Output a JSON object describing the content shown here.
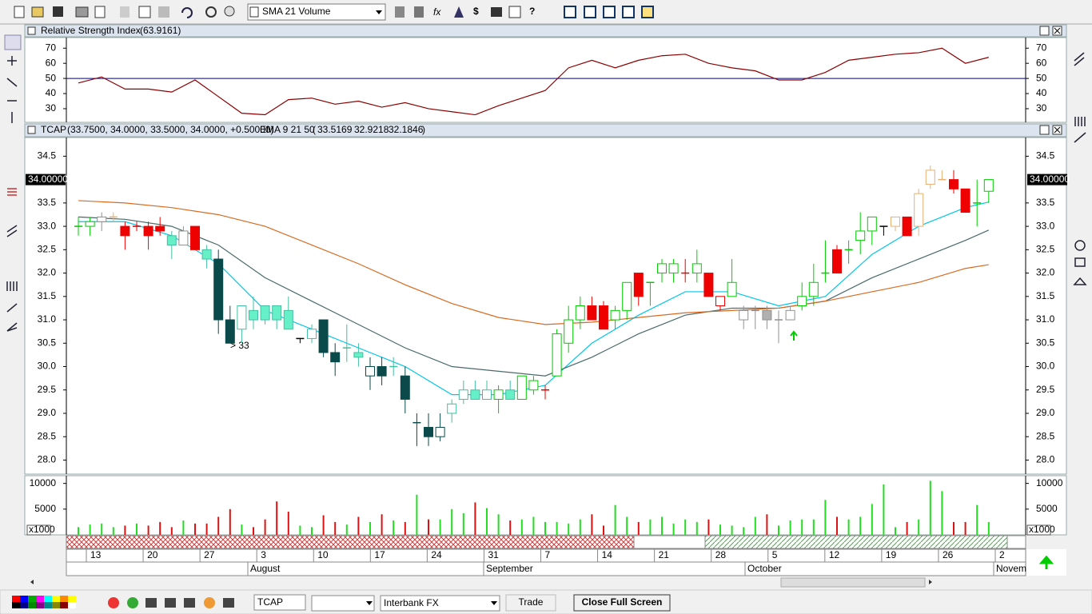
{
  "toolbar": {
    "indicator_select": "SMA 21 Volume"
  },
  "rsi_panel": {
    "title": "Relative Strength Index",
    "readout": "(63.9161)",
    "ylim": [
      21,
      77
    ],
    "yticks": [
      70,
      60,
      50,
      40,
      30
    ],
    "reference": 50,
    "color": "#8b0000",
    "reference_color": "#000080",
    "x": [
      0,
      2,
      4,
      6,
      8,
      10,
      12,
      14,
      16,
      18,
      20,
      22,
      24,
      26,
      28,
      30,
      32,
      34,
      36,
      38,
      40,
      42,
      44,
      46,
      48,
      50,
      52,
      54,
      56,
      58,
      60,
      62,
      64,
      66,
      68,
      70,
      72,
      74,
      76,
      78
    ],
    "values": [
      47,
      51,
      43,
      43,
      41,
      49,
      38,
      27,
      26,
      36,
      37,
      33,
      35,
      31,
      34,
      30,
      28,
      26,
      32,
      37,
      42,
      57,
      62,
      57,
      62,
      65,
      66,
      60,
      57,
      55,
      49,
      49,
      54,
      62,
      64,
      66,
      67,
      70,
      60,
      64
    ]
  },
  "chart_data": {
    "type": "candlestick",
    "symbol": "TCAP",
    "ohlc_readout": "(33.7500, 34.0000, 33.5000, 34.0000, +0.50000)",
    "ema_label": "EMA 9 21 50",
    "ema_paren_open": "(",
    "ema_paren_close": ")",
    "ylim": [
      27.7,
      34.9
    ],
    "yticks": [
      34.5,
      33.5,
      {
        "value": 33,
        "label": "33.0"
      },
      32.5,
      {
        "value": 32,
        "label": "32.0"
      },
      31.5,
      {
        "value": 31,
        "label": "31.0"
      },
      30.5,
      {
        "value": 30,
        "label": "30.0"
      },
      29.5,
      {
        "value": 29,
        "label": "29.0"
      },
      28.5,
      {
        "value": 28,
        "label": "28.0"
      }
    ],
    "last_price": {
      "value": 34,
      "label": "34.00000"
    },
    "open": [
      33.0,
      33.0,
      33.1,
      33.2,
      33.0,
      33.0,
      33.0,
      33.0,
      32.8,
      32.6,
      33.0,
      32.5,
      32.3,
      31.0,
      30.8,
      31.2,
      31.3,
      31.3,
      31.2,
      30.6,
      30.6,
      31.0,
      30.3,
      30.4,
      30.3,
      29.8,
      30.0,
      30.0,
      29.8,
      28.8,
      28.7,
      28.5,
      29.0,
      29.3,
      29.5,
      29.3,
      29.3,
      29.5,
      29.3,
      29.5,
      29.5,
      29.8,
      30.5,
      31.0,
      31.3,
      31.3,
      31.0,
      31.2,
      32.0,
      31.8,
      32.0,
      32.0,
      32.0,
      32.0,
      32.0,
      31.3,
      31.5,
      31.0,
      31.2,
      31.2,
      31.0,
      31.0,
      31.3,
      31.5,
      32.0,
      32.5,
      32.5,
      32.7,
      32.9,
      33.0,
      33.0,
      33.2,
      33.0,
      33.9,
      34.0,
      34.0,
      33.8,
      33.5,
      33.75
    ],
    "high": [
      33.2,
      33.2,
      33.3,
      33.3,
      33.1,
      33.1,
      33.1,
      33.2,
      32.9,
      33.0,
      33.0,
      32.6,
      32.5,
      31.3,
      31.3,
      31.5,
      31.3,
      31.3,
      31.5,
      30.6,
      30.9,
      31.0,
      30.5,
      30.9,
      30.5,
      30.2,
      30.2,
      30.2,
      30.0,
      29.0,
      29.0,
      29.0,
      29.3,
      29.7,
      29.7,
      29.7,
      29.6,
      29.7,
      29.8,
      29.8,
      29.6,
      30.8,
      31.3,
      31.5,
      31.5,
      31.4,
      31.3,
      31.8,
      32.0,
      31.8,
      32.3,
      32.3,
      32.3,
      32.5,
      32.0,
      31.5,
      32.3,
      31.3,
      31.3,
      31.3,
      31.2,
      31.3,
      31.8,
      32.2,
      32.7,
      32.6,
      32.7,
      33.3,
      33.2,
      33.0,
      33.2,
      33.2,
      33.8,
      34.3,
      34.2,
      34.2,
      33.8,
      34.0,
      34.0
    ],
    "low": [
      32.8,
      32.8,
      32.9,
      33.1,
      32.5,
      32.9,
      32.5,
      32.8,
      32.3,
      32.6,
      32.5,
      32.1,
      30.7,
      30.5,
      30.5,
      30.8,
      30.9,
      30.8,
      30.8,
      30.5,
      30.5,
      30.2,
      29.8,
      30.1,
      30.0,
      29.5,
      29.6,
      29.8,
      29.0,
      28.3,
      28.3,
      28.4,
      28.8,
      29.2,
      29.3,
      29.3,
      29.0,
      29.3,
      29.3,
      29.4,
      29.3,
      29.8,
      30.3,
      30.8,
      31.0,
      30.8,
      30.8,
      31.0,
      31.3,
      31.3,
      31.8,
      31.8,
      31.8,
      31.8,
      31.5,
      31.2,
      31.5,
      30.8,
      30.8,
      30.8,
      30.5,
      31.0,
      31.2,
      31.3,
      31.8,
      32.0,
      32.2,
      32.4,
      32.6,
      32.8,
      32.9,
      32.8,
      32.8,
      33.8,
      34.0,
      33.7,
      33.3,
      33.0,
      33.5
    ],
    "close": [
      33.0,
      33.1,
      33.2,
      33.2,
      32.8,
      33.0,
      32.8,
      32.9,
      32.6,
      32.9,
      32.5,
      32.3,
      31.0,
      30.5,
      31.3,
      31.0,
      31.0,
      31.0,
      30.8,
      30.6,
      30.8,
      30.3,
      30.1,
      30.4,
      30.2,
      30.0,
      29.8,
      30.0,
      29.3,
      28.8,
      28.5,
      28.7,
      29.2,
      29.5,
      29.3,
      29.5,
      29.5,
      29.3,
      29.8,
      29.7,
      29.5,
      30.7,
      31.0,
      31.3,
      31.0,
      30.8,
      31.2,
      31.8,
      31.5,
      31.8,
      32.2,
      32.2,
      32.0,
      32.2,
      31.5,
      31.5,
      31.8,
      31.2,
      31.2,
      31.0,
      31.0,
      31.2,
      31.5,
      31.8,
      32.0,
      32.0,
      32.5,
      32.9,
      33.2,
      33.0,
      33.2,
      32.8,
      33.7,
      34.2,
      34.0,
      33.8,
      33.3,
      33.5,
      34.0
    ],
    "colors": [
      "#00cc00",
      "#00cc00",
      "#b0b0b0",
      "#e8b070",
      "#ee0000",
      "#ee0000",
      "#ee0000",
      "#ee0000",
      "#66f0c8",
      "#b0b0b0",
      "#ee0000",
      "#66f0c8",
      "#0a4a4a",
      "#0a4a4a",
      "#66f0c8",
      "#66f0c8",
      "#66f0c8",
      "#66f0c8",
      "#66f0c8",
      "#000000",
      "#66f0c8",
      "#0a4a4a",
      "#0a4a4a",
      "#66f0c8",
      "#66f0c8",
      "#0a4a4a",
      "#0a4a4a",
      "#66f0c8",
      "#0a4a4a",
      "#0a4a4a",
      "#0a4a4a",
      "#0a4a4a",
      "#66f0c8",
      "#66f0c8",
      "#66f0c8",
      "#66f0c8",
      "#00cc00",
      "#66f0c8",
      "#00cc00",
      "#00cc00",
      "#ee0000",
      "#00cc00",
      "#00cc00",
      "#00cc00",
      "#ee0000",
      "#ee0000",
      "#00cc00",
      "#00cc00",
      "#ee0000",
      "#00cc00",
      "#00cc00",
      "#00cc00",
      "#ee0000",
      "#00cc00",
      "#ee0000",
      "#ee0000",
      "#00cc00",
      "#b0b0b0",
      "#b0b0b0",
      "#b0b0b0",
      "#b0b0b0",
      "#b0b0b0",
      "#00cc00",
      "#00cc00",
      "#00cc00",
      "#ee0000",
      "#00cc00",
      "#00cc00",
      "#00cc00",
      "#000000",
      "#e8b070",
      "#ee0000",
      "#e8b070",
      "#e8b070",
      "#e8b070",
      "#ee0000",
      "#ee0000",
      "#00cc00",
      "#00cc00"
    ],
    "series": [
      {
        "name": "33.5169",
        "color": "#00c8e8",
        "x": [
          0,
          4,
          8,
          12,
          16,
          20,
          24,
          28,
          32,
          36,
          40,
          44,
          48,
          52,
          56,
          60,
          64,
          68,
          72,
          76,
          78
        ],
        "values": [
          33.1,
          33.1,
          32.8,
          32.2,
          31.2,
          30.8,
          30.4,
          30.0,
          29.4,
          29.4,
          29.6,
          30.5,
          31.1,
          31.6,
          31.6,
          31.3,
          31.5,
          32.4,
          33.0,
          33.4,
          33.52
        ]
      },
      {
        "name": "32.9218",
        "color": "#4a6a6a",
        "x": [
          0,
          4,
          8,
          12,
          16,
          20,
          24,
          28,
          32,
          36,
          40,
          44,
          48,
          52,
          56,
          60,
          64,
          68,
          72,
          76,
          78
        ],
        "values": [
          33.2,
          33.15,
          33.0,
          32.6,
          31.9,
          31.4,
          30.9,
          30.4,
          30.0,
          29.9,
          29.8,
          30.2,
          30.7,
          31.1,
          31.25,
          31.25,
          31.4,
          31.9,
          32.3,
          32.7,
          32.92
        ]
      },
      {
        "name": "32.1846",
        "color": "#d86a20",
        "x": [
          0,
          4,
          8,
          12,
          16,
          20,
          24,
          28,
          32,
          36,
          40,
          44,
          48,
          52,
          56,
          60,
          64,
          68,
          72,
          76,
          78
        ],
        "values": [
          33.55,
          33.5,
          33.4,
          33.25,
          33.0,
          32.6,
          32.2,
          31.75,
          31.35,
          31.05,
          30.9,
          30.95,
          31.05,
          31.15,
          31.2,
          31.25,
          31.4,
          31.6,
          31.8,
          32.1,
          32.18
        ]
      }
    ],
    "annotation": "> 33"
  },
  "volume_panel": {
    "ylim": [
      0,
      11500
    ],
    "yticks": [
      10000,
      5000
    ],
    "unit": "x1000",
    "up_color": "#22dd22",
    "down_color": "#dd1111",
    "values": [
      1500,
      2000,
      2200,
      1500,
      1800,
      2200,
      1800,
      2500,
      1500,
      2800,
      2200,
      2200,
      3500,
      5000,
      2000,
      1500,
      3000,
      6500,
      4500,
      1800,
      1500,
      3800,
      2500,
      2000,
      3500,
      2500,
      4000,
      2800,
      2500,
      7800,
      3000,
      3000,
      5000,
      4200,
      6300,
      5200,
      4000,
      2800,
      3000,
      3500,
      2500,
      2500,
      2200,
      3000,
      4000,
      1800,
      5800,
      3500,
      2500,
      3000,
      3500,
      2200,
      3000,
      2500,
      3000,
      2000,
      1800,
      1500,
      3500,
      4000,
      1800,
      2800,
      3000,
      3000,
      6800,
      3500,
      3000,
      3500,
      6000,
      9800,
      1500,
      2500,
      3000,
      10500,
      8500,
      2500,
      2500,
      5800,
      2500
    ]
  },
  "date_axis": {
    "days": [
      "13",
      "20",
      "27",
      "3",
      "10",
      "17",
      "24",
      "31",
      "7",
      "14",
      "21",
      "28",
      "5",
      "12",
      "19",
      "26",
      "2"
    ],
    "months": [
      "August",
      "September",
      "October",
      "Novem"
    ]
  },
  "bottom_bar": {
    "symbol_input": "TCAP",
    "broker_select": "Interbank FX",
    "trade_button": "Trade",
    "close_button": "Close Full Screen"
  }
}
